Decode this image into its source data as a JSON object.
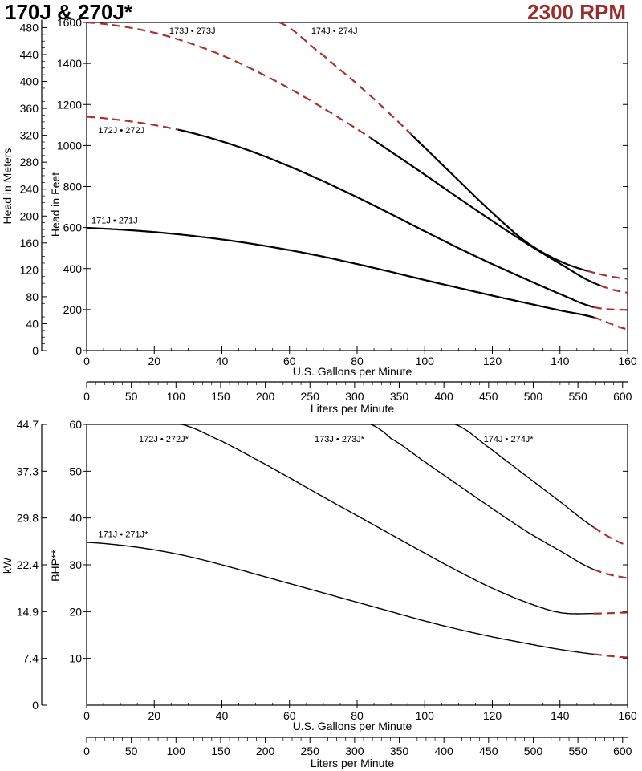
{
  "header": {
    "title": "170J & 270J*",
    "rpm": "2300 RPM"
  },
  "colors": {
    "rpm_text": "#9b2c2c",
    "dashed_curve": "#a83232",
    "solid_curve": "#000000"
  },
  "chart_data": [
    {
      "type": "line",
      "name": "head",
      "xlabel": "U.S. Gallons per Minute",
      "xlabel2": "Liters per Minute",
      "ylabel_left": "Head in Meters",
      "ylabel_right": "Head in Feet",
      "xlim": [
        0,
        160
      ],
      "ylim": [
        0,
        1600
      ],
      "x_ticks": [
        0,
        20,
        40,
        60,
        80,
        100,
        120,
        140,
        160
      ],
      "y_ticks": [
        0,
        200,
        400,
        600,
        800,
        1000,
        1200,
        1400,
        1600
      ],
      "lpm_ticks": [
        0,
        50,
        100,
        150,
        200,
        250,
        300,
        350,
        400,
        450,
        500,
        550,
        600
      ],
      "meters_ticks": [
        0,
        40,
        80,
        120,
        160,
        200,
        240,
        280,
        320,
        360,
        400,
        440,
        480
      ],
      "grid": true,
      "series": [
        {
          "name": "171J • 271J",
          "label_at": [
            0,
            620
          ],
          "points": [
            [
              0,
              598
            ],
            [
              10,
              590
            ],
            [
              20,
              578
            ],
            [
              30,
              562
            ],
            [
              40,
              542
            ],
            [
              50,
              518
            ],
            [
              60,
              490
            ],
            [
              70,
              458
            ],
            [
              80,
              422
            ],
            [
              90,
              384
            ],
            [
              100,
              344
            ],
            [
              110,
              306
            ],
            [
              120,
              268
            ],
            [
              130,
              232
            ],
            [
              140,
              196
            ],
            [
              150,
              162
            ],
            [
              160,
              104
            ]
          ],
          "solid_range": [
            0,
            150
          ]
        },
        {
          "name": "172J • 272J",
          "label_at": [
            2,
            1060
          ],
          "points": [
            [
              0,
              1140
            ],
            [
              10,
              1124
            ],
            [
              20,
              1100
            ],
            [
              30,
              1066
            ],
            [
              40,
              1020
            ],
            [
              50,
              964
            ],
            [
              60,
              898
            ],
            [
              70,
              826
            ],
            [
              80,
              748
            ],
            [
              90,
              666
            ],
            [
              100,
              582
            ],
            [
              110,
              500
            ],
            [
              120,
              422
            ],
            [
              130,
              348
            ],
            [
              140,
              276
            ],
            [
              150,
              212
            ],
            [
              160,
              198
            ]
          ],
          "solid_range": [
            27,
            150
          ]
        },
        {
          "name": "173J • 273J",
          "label_at": [
            23,
            1545
          ],
          "points": [
            [
              0,
              1600
            ],
            [
              10,
              1582
            ],
            [
              20,
              1550
            ],
            [
              30,
              1502
            ],
            [
              40,
              1440
            ],
            [
              50,
              1364
            ],
            [
              60,
              1278
            ],
            [
              70,
              1182
            ],
            [
              80,
              1080
            ],
            [
              90,
              970
            ],
            [
              100,
              858
            ],
            [
              110,
              744
            ],
            [
              120,
              632
            ],
            [
              130,
              524
            ],
            [
              140,
              424
            ],
            [
              150,
              330
            ],
            [
              160,
              282
            ]
          ],
          "solid_range": [
            84,
            152
          ]
        },
        {
          "name": "174J • 274J",
          "label_at": [
            65,
            1545
          ],
          "points": [
            [
              57,
              1600
            ],
            [
              70,
              1440
            ],
            [
              80,
              1300
            ],
            [
              90,
              1150
            ],
            [
              100,
              990
            ],
            [
              110,
              830
            ],
            [
              120,
              672
            ],
            [
              130,
              530
            ],
            [
              140,
              436
            ],
            [
              150,
              380
            ],
            [
              160,
              350
            ]
          ],
          "solid_range": [
            96,
            148
          ]
        }
      ]
    },
    {
      "type": "line",
      "name": "power",
      "xlabel": "U.S. Gallons per Minute",
      "xlabel2": "Liters per Minute",
      "ylabel_left": "kW",
      "ylabel_right": "BHP**",
      "xlim": [
        0,
        160
      ],
      "ylim": [
        0,
        60
      ],
      "x_ticks": [
        0,
        20,
        40,
        60,
        80,
        100,
        120,
        140,
        160
      ],
      "y_ticks": [
        10,
        20,
        30,
        40,
        50,
        60
      ],
      "kw_ticks": [
        "0",
        "7.4",
        "14.9",
        "22.4",
        "29.8",
        "37.3",
        "44.7"
      ],
      "lpm_ticks": [
        0,
        50,
        100,
        150,
        200,
        250,
        300,
        350,
        400,
        450,
        500,
        550,
        600
      ],
      "grid": true,
      "series": [
        {
          "name": "171J • 271J*",
          "label_at": [
            2,
            35.9
          ],
          "points": [
            [
              0,
              34.8
            ],
            [
              10,
              34.2
            ],
            [
              20,
              33.2
            ],
            [
              30,
              31.8
            ],
            [
              40,
              30.0
            ],
            [
              50,
              28.0
            ],
            [
              60,
              26.0
            ],
            [
              70,
              24.0
            ],
            [
              80,
              22.0
            ],
            [
              90,
              20.0
            ],
            [
              100,
              18.0
            ],
            [
              110,
              16.2
            ],
            [
              120,
              14.6
            ],
            [
              130,
              13.2
            ],
            [
              140,
              11.9
            ],
            [
              150,
              10.9
            ],
            [
              160,
              10.2
            ]
          ],
          "solid_range": [
            0,
            150
          ]
        },
        {
          "name": "172J • 272J*",
          "label_at": [
            14,
            56.2
          ],
          "points": [
            [
              28,
              60
            ],
            [
              40,
              56.4
            ],
            [
              50,
              52.6
            ],
            [
              60,
              48.6
            ],
            [
              70,
              44.5
            ],
            [
              80,
              40.5
            ],
            [
              90,
              36.5
            ],
            [
              100,
              32.5
            ],
            [
              110,
              28.6
            ],
            [
              120,
              25.0
            ],
            [
              130,
              22.0
            ],
            [
              140,
              19.8
            ],
            [
              150,
              19.6
            ],
            [
              160,
              19.8
            ]
          ],
          "solid_range": [
            28,
            150
          ]
        },
        {
          "name": "173J • 273J*",
          "label_at": [
            66,
            56.2
          ],
          "points": [
            [
              84,
              60
            ],
            [
              90,
              57.0
            ],
            [
              100,
              52.0
            ],
            [
              110,
              47.0
            ],
            [
              120,
              42.0
            ],
            [
              130,
              37.2
            ],
            [
              140,
              33.0
            ],
            [
              150,
              29.0
            ],
            [
              160,
              27.2
            ]
          ],
          "solid_range": [
            84,
            150
          ]
        },
        {
          "name": "174J • 274J*",
          "label_at": [
            116,
            56.2
          ],
          "points": [
            [
              109,
              60
            ],
            [
              120,
              54.5
            ],
            [
              130,
              49.0
            ],
            [
              140,
              43.5
            ],
            [
              150,
              38.0
            ],
            [
              160,
              34.2
            ]
          ],
          "solid_range": [
            109,
            150
          ]
        }
      ]
    }
  ]
}
